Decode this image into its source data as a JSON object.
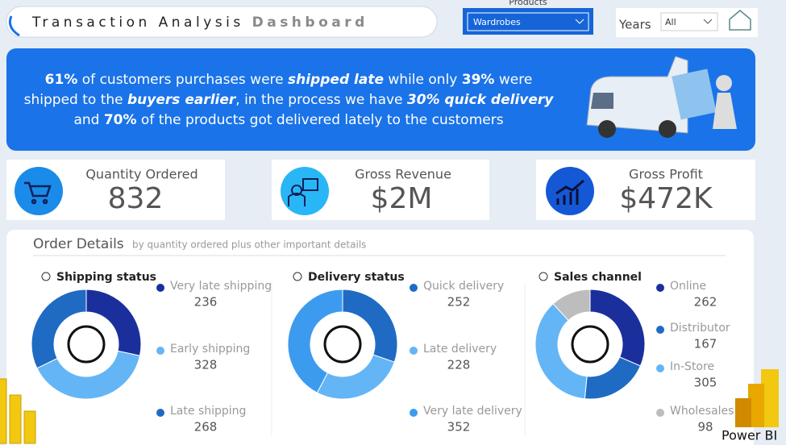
{
  "header": {
    "title": "Transaction Analysis ",
    "title_emphasis": "Dashboard"
  },
  "filters": {
    "products_label": "Products",
    "products_value": "Wardrobes",
    "years_label": "Years",
    "years_value": "All"
  },
  "banner": {
    "segments": [
      "61%",
      " of customers purchases were ",
      "shipped late",
      " while only ",
      "39%",
      " were",
      "shipped to the ",
      "buyers earlier",
      ", in the process we have ",
      "30% quick delivery",
      "and ",
      "70%",
      " of the products got delivered lately to the customers"
    ]
  },
  "kpis": [
    {
      "label": "Quantity Ordered",
      "value": "832"
    },
    {
      "label": "Gross Revenue",
      "value": "$2M"
    },
    {
      "label": "Gross Profit",
      "value": "$472K"
    }
  ],
  "order_details": {
    "title": "Order Details",
    "subtitle": "by quantity ordered plus other important details",
    "panels": [
      {
        "title": "Shipping status",
        "series": [
          {
            "name": "Very late shipping",
            "value": 236,
            "color": "#1b2f9c"
          },
          {
            "name": "Early shipping",
            "value": 328,
            "color": "#64b5f6"
          },
          {
            "name": "Late shipping",
            "value": 268,
            "color": "#1f6bc4"
          }
        ]
      },
      {
        "title": "Delivery status",
        "series": [
          {
            "name": "Quick delivery",
            "value": 252,
            "color": "#1f6bc4"
          },
          {
            "name": "Late delivery",
            "value": 228,
            "color": "#64b5f6"
          },
          {
            "name": "Very late delivery",
            "value": 352,
            "color": "#3d9bef"
          }
        ]
      },
      {
        "title": "Sales channel",
        "series": [
          {
            "name": "Online",
            "value": 262,
            "color": "#1b2f9c"
          },
          {
            "name": "Distributor",
            "value": 167,
            "color": "#1f6bc4"
          },
          {
            "name": "In-Store",
            "value": 305,
            "color": "#64b5f6"
          },
          {
            "name": "Wholesales",
            "value": 98,
            "color": "#bdbdbd"
          }
        ]
      }
    ]
  },
  "watermark": "Power BI"
}
